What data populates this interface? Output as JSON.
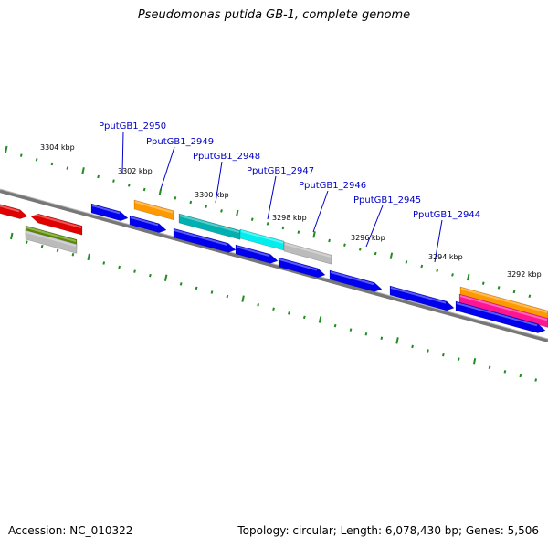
{
  "title": "Pseudomonas putida GB-1, complete genome",
  "footer": {
    "accession": "Accession: NC_010322",
    "summary": "Topology: circular; Length: 6,078,430 bp; Genes: 5,506"
  },
  "kbp_labels": [
    "3304 kbp",
    "3302 kbp",
    "3300 kbp",
    "3298 kbp",
    "3296 kbp",
    "3294 kbp",
    "3292 kbp"
  ],
  "gene_labels": [
    "PputGB1_2950",
    "PputGB1_2949",
    "PputGB1_2948",
    "PputGB1_2947",
    "PputGB1_2946",
    "PputGB1_2945",
    "PputGB1_2944"
  ],
  "colors": {
    "blue": "#0000ee",
    "red": "#e00000",
    "orange": "#ff9900",
    "teal": "#00b0b0",
    "cyan": "#00eeee",
    "gray": "#bbbbbb",
    "green": "#5a8a00",
    "magenta": "#ff1493",
    "backbone": "#777777",
    "tick": "#228b22",
    "leader": "#0000c8"
  }
}
